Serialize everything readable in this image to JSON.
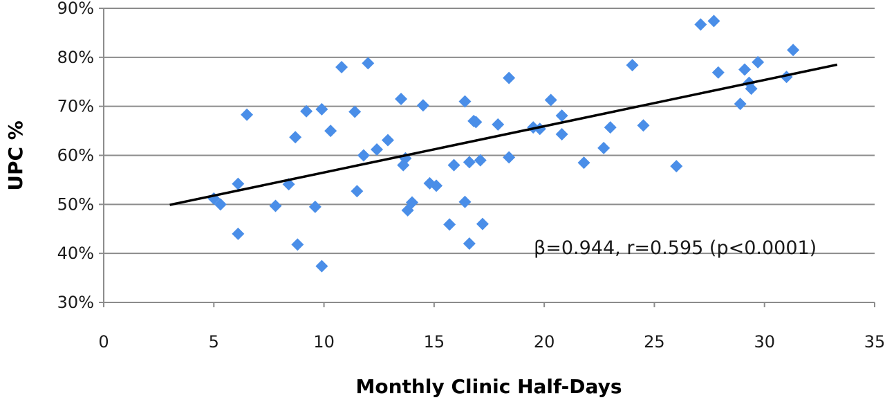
{
  "chart_data": {
    "type": "scatter",
    "xlabel": "Monthly Clinic Half-Days",
    "ylabel": "UPC %",
    "xlim": [
      0,
      35
    ],
    "ylim": [
      30,
      90
    ],
    "x_ticks": [
      0,
      5,
      10,
      15,
      20,
      25,
      30,
      35
    ],
    "y_ticks": [
      30,
      40,
      50,
      60,
      70,
      80,
      90
    ],
    "y_tick_labels": [
      "30%",
      "40%",
      "50%",
      "60%",
      "70%",
      "80%",
      "90%"
    ],
    "grid": "horizontal",
    "legend": "none",
    "marker": "diamond",
    "marker_color": "#4a8ee8",
    "trendline": {
      "x": [
        3.0,
        33.3
      ],
      "y": [
        49.9,
        78.5
      ],
      "color": "#000000"
    },
    "annotation": "β=0.944, r=0.595 (p<0.0001)",
    "points": [
      [
        5.0,
        51.2
      ],
      [
        5.3,
        50.0
      ],
      [
        6.1,
        54.2
      ],
      [
        6.1,
        44.0
      ],
      [
        6.5,
        68.3
      ],
      [
        7.8,
        49.7
      ],
      [
        8.4,
        54.1
      ],
      [
        8.7,
        63.7
      ],
      [
        8.8,
        41.8
      ],
      [
        9.2,
        69.0
      ],
      [
        9.6,
        49.5
      ],
      [
        9.9,
        69.4
      ],
      [
        9.9,
        37.4
      ],
      [
        10.3,
        65.0
      ],
      [
        10.8,
        78.0
      ],
      [
        11.4,
        68.9
      ],
      [
        11.5,
        52.7
      ],
      [
        11.8,
        60.0
      ],
      [
        12.0,
        78.8
      ],
      [
        12.4,
        61.2
      ],
      [
        12.9,
        63.1
      ],
      [
        13.5,
        71.5
      ],
      [
        13.6,
        58.0
      ],
      [
        13.7,
        59.4
      ],
      [
        13.8,
        48.8
      ],
      [
        14.0,
        50.4
      ],
      [
        14.5,
        70.2
      ],
      [
        14.8,
        54.3
      ],
      [
        15.1,
        53.8
      ],
      [
        15.7,
        45.9
      ],
      [
        15.9,
        58.0
      ],
      [
        16.4,
        50.5
      ],
      [
        16.4,
        71.0
      ],
      [
        16.6,
        58.6
      ],
      [
        16.6,
        42.0
      ],
      [
        16.8,
        67.0
      ],
      [
        16.9,
        66.8
      ],
      [
        17.1,
        59.0
      ],
      [
        17.2,
        46.0
      ],
      [
        17.9,
        66.3
      ],
      [
        18.4,
        75.8
      ],
      [
        18.4,
        59.6
      ],
      [
        19.5,
        65.7
      ],
      [
        19.8,
        65.4
      ],
      [
        20.3,
        71.3
      ],
      [
        20.8,
        68.1
      ],
      [
        20.8,
        64.3
      ],
      [
        21.8,
        58.5
      ],
      [
        22.7,
        61.5
      ],
      [
        23.0,
        65.7
      ],
      [
        24.0,
        78.4
      ],
      [
        24.5,
        66.1
      ],
      [
        26.0,
        57.8
      ],
      [
        27.1,
        86.7
      ],
      [
        27.7,
        87.4
      ],
      [
        27.9,
        76.9
      ],
      [
        28.9,
        70.5
      ],
      [
        29.1,
        77.5
      ],
      [
        29.3,
        74.8
      ],
      [
        29.4,
        73.6
      ],
      [
        29.7,
        79.0
      ],
      [
        31.0,
        76.0
      ],
      [
        31.3,
        81.5
      ]
    ]
  }
}
